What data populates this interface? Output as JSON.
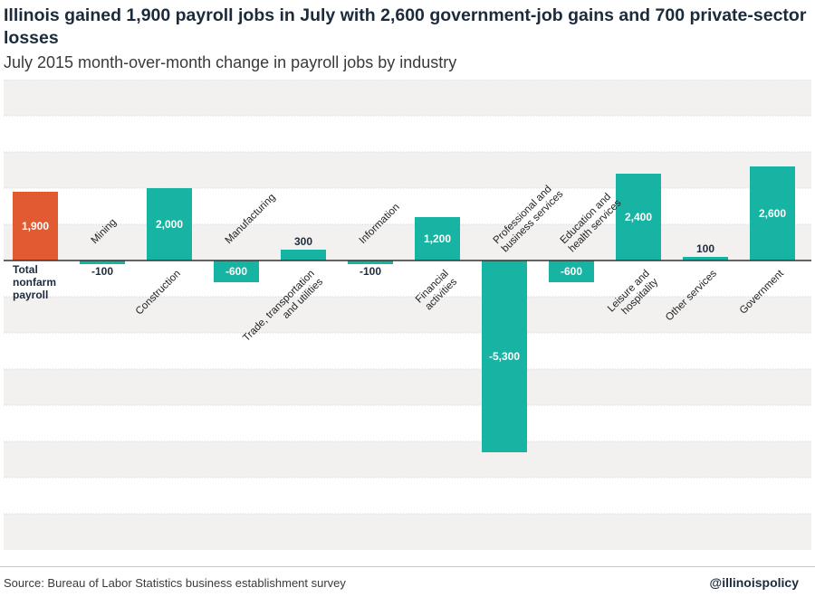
{
  "title": "Illinois gained 1,900 payroll jobs in July with 2,600 government-job gains and 700 private-sector losses",
  "subtitle": "July 2015 month-over-month change in payroll jobs by industry",
  "source": "Source: Bureau of Labor Statistics business establishment survey",
  "handle": "@illinoispolicy",
  "colors": {
    "total": "#e15a32",
    "industry": "#17b3a3",
    "grid": "#f2f1f0",
    "axis": "#333333"
  },
  "chart_data": {
    "type": "bar",
    "categories": [
      "Total nonfarm payroll",
      "Mining",
      "Construction",
      "Manufacturing",
      "Trade, transportation and utilities",
      "Information",
      "Financial activities",
      "Professional and business services",
      "Education and health services",
      "Leisure and hospitality",
      "Other services",
      "Government"
    ],
    "values": [
      1900,
      -100,
      2000,
      -600,
      300,
      -100,
      1200,
      -5300,
      -600,
      2400,
      100,
      2600
    ],
    "data_labels": [
      "1,900",
      "-100",
      "2,000",
      "-600",
      "300",
      "-100",
      "1,200",
      "-5,300",
      "-600",
      "2,400",
      "100",
      "2,600"
    ],
    "ylim": [
      -8000,
      5000
    ],
    "grid": true
  }
}
